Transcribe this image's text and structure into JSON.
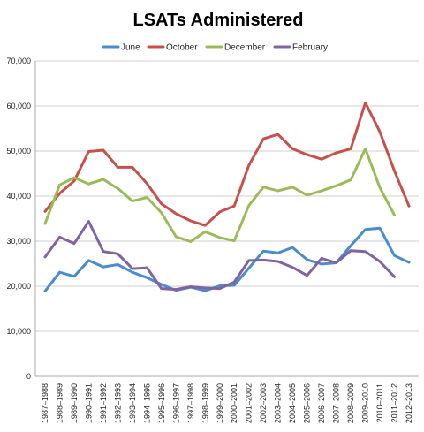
{
  "chart_data": {
    "type": "line",
    "title": "LSATs Administered",
    "xlabel": "",
    "ylabel": "",
    "ylim": [
      0,
      70000
    ],
    "yticks": [
      0,
      10000,
      20000,
      30000,
      40000,
      50000,
      60000,
      70000
    ],
    "ytick_labels": [
      "0",
      "10,000",
      "20,000",
      "30,000",
      "40,000",
      "50,000",
      "60,000",
      "70,000"
    ],
    "grid": true,
    "legend_position": "top",
    "categories": [
      "1987–1988",
      "1988–1989",
      "1989–1990",
      "1990–1991",
      "1991–1992",
      "1992–1993",
      "1993–1994",
      "1994–1995",
      "1995–1996",
      "1996–1997",
      "1997–1998",
      "1998–1999",
      "1999–2000",
      "2000–2001",
      "2001–2002",
      "2002–2003",
      "2003–2004",
      "2004–2005",
      "2005–2006",
      "2006–2007",
      "2007–2008",
      "2008–2009",
      "2009–2010",
      "2010–2011",
      "2011–2012",
      "2012–2013"
    ],
    "series": [
      {
        "name": "June",
        "color": "#4a8ccf",
        "values": [
          18900,
          23100,
          22200,
          25700,
          24300,
          24800,
          23100,
          21900,
          20400,
          19100,
          19800,
          19000,
          20100,
          20200,
          24000,
          27800,
          27400,
          28600,
          25900,
          24900,
          25200,
          29000,
          32600,
          32900,
          26800,
          25300
        ]
      },
      {
        "name": "October",
        "color": "#c8504b",
        "values": [
          36600,
          40600,
          43400,
          49900,
          50200,
          46400,
          46400,
          42800,
          38300,
          36100,
          34500,
          33500,
          36500,
          37800,
          46800,
          52700,
          53700,
          50500,
          49200,
          48200,
          49600,
          50500,
          60700,
          54300,
          45600,
          37800
        ]
      },
      {
        "name": "December",
        "color": "#9bbb59",
        "values": [
          33900,
          42500,
          44100,
          42700,
          43700,
          41700,
          38900,
          39700,
          36300,
          31000,
          29900,
          32100,
          30800,
          30100,
          37900,
          42000,
          41200,
          42000,
          40200,
          41200,
          42300,
          43600,
          50500,
          41900,
          35800,
          null
        ]
      },
      {
        "name": "February",
        "color": "#8064a2",
        "values": [
          26500,
          30900,
          29500,
          34400,
          27700,
          27200,
          23900,
          24100,
          19500,
          19300,
          19900,
          19600,
          19500,
          20900,
          25700,
          25800,
          25500,
          24200,
          22400,
          26200,
          25200,
          27900,
          27700,
          25500,
          22100,
          null
        ]
      }
    ]
  }
}
